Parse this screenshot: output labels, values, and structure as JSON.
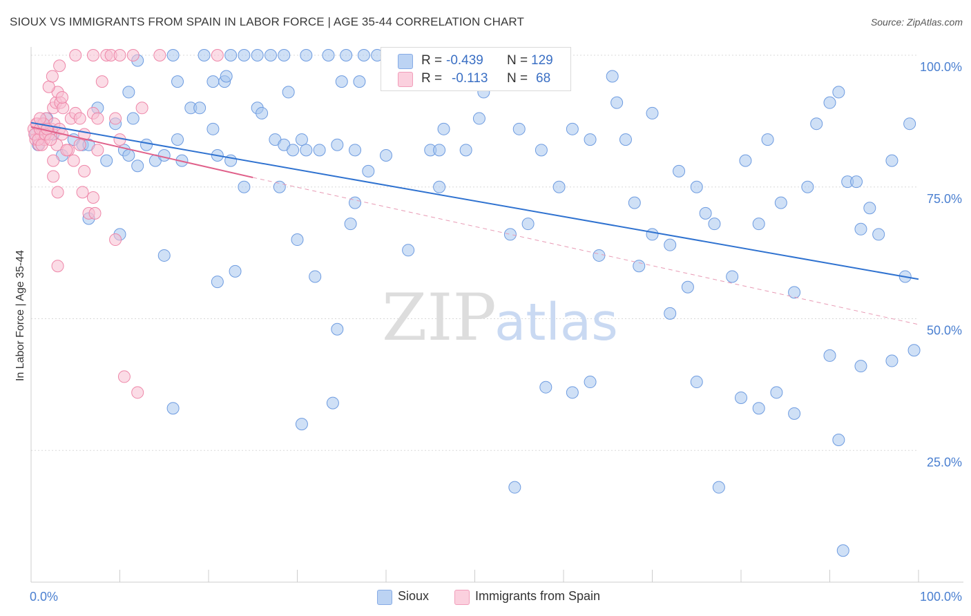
{
  "title": "SIOUX VS IMMIGRANTS FROM SPAIN IN LABOR FORCE | AGE 35-44 CORRELATION CHART",
  "source": "Source: ZipAtlas.com",
  "watermark": {
    "zip": "ZIP",
    "atlas": "atlas"
  },
  "legend": {
    "r_label": "R =",
    "n_label": "N =",
    "rows": [
      {
        "name": "Sioux",
        "r": "-0.439",
        "n": "129",
        "color": "#a8c6ee",
        "edge": "#6d9be0"
      },
      {
        "name": "Immigrants from Spain",
        "r": "-0.113",
        "n": "68",
        "color": "#f8bfd1",
        "edge": "#ee86a8"
      }
    ]
  },
  "chart_data": {
    "type": "scatter",
    "title": "SIOUX VS IMMIGRANTS FROM SPAIN IN LABOR FORCE | AGE 35-44 CORRELATION CHART",
    "xlabel": "",
    "ylabel": "In Labor Force | Age 35-44",
    "xlim": [
      0,
      100
    ],
    "ylim": [
      0,
      100
    ],
    "x_tick_labels": [
      "0.0%",
      "100.0%"
    ],
    "y_tick_labels": [
      "100.0%",
      "75.0%",
      "50.0%",
      "25.0%"
    ],
    "y_tick_values": [
      100,
      75,
      50,
      25
    ],
    "grid": true,
    "series": [
      {
        "name": "Sioux",
        "color": "#a8c6ee",
        "edge": "#6d9be0",
        "trend": {
          "x": [
            0,
            100
          ],
          "y": [
            87.2,
            57.5
          ],
          "color": "#2f72d0",
          "dashed": false
        },
        "points": [
          [
            0.5,
            85
          ],
          [
            0.8,
            83
          ],
          [
            1.2,
            87
          ],
          [
            1.8,
            88
          ],
          [
            2.5,
            85
          ],
          [
            3.5,
            81
          ],
          [
            4.8,
            84
          ],
          [
            5.8,
            83
          ],
          [
            6.5,
            83
          ],
          [
            7.5,
            90
          ],
          [
            8.5,
            80
          ],
          [
            9.5,
            87
          ],
          [
            10.5,
            82
          ],
          [
            11.0,
            81
          ],
          [
            12.0,
            79
          ],
          [
            11.5,
            88
          ],
          [
            13.0,
            83
          ],
          [
            14.0,
            80
          ],
          [
            15.0,
            81
          ],
          [
            16.5,
            84
          ],
          [
            17.0,
            80
          ],
          [
            18.0,
            90
          ],
          [
            19.0,
            90
          ],
          [
            20.5,
            86
          ],
          [
            21.0,
            81
          ],
          [
            22.5,
            80
          ],
          [
            24.0,
            75
          ],
          [
            25.5,
            90
          ],
          [
            26.0,
            89
          ],
          [
            27.5,
            84
          ],
          [
            28.5,
            83
          ],
          [
            29.5,
            82
          ],
          [
            30.5,
            84
          ],
          [
            31.0,
            82
          ],
          [
            29.0,
            93
          ],
          [
            32.5,
            82
          ],
          [
            34.5,
            83
          ],
          [
            36.5,
            82
          ],
          [
            11.0,
            93
          ],
          [
            16.5,
            95
          ],
          [
            20.5,
            95
          ],
          [
            21.8,
            95
          ],
          [
            22.0,
            96
          ],
          [
            12.0,
            99
          ],
          [
            16.0,
            100
          ],
          [
            19.5,
            100
          ],
          [
            22.5,
            100
          ],
          [
            24.0,
            100
          ],
          [
            25.5,
            100
          ],
          [
            27.0,
            100
          ],
          [
            28.5,
            100
          ],
          [
            31.0,
            100
          ],
          [
            33.5,
            100
          ],
          [
            35.5,
            100
          ],
          [
            37.5,
            100
          ],
          [
            39.0,
            100
          ],
          [
            40.5,
            100
          ],
          [
            42.5,
            100
          ],
          [
            35.0,
            95
          ],
          [
            37.0,
            95
          ],
          [
            42.5,
            96
          ],
          [
            44.5,
            95
          ],
          [
            47.5,
            100
          ],
          [
            6.5,
            69
          ],
          [
            10.0,
            66
          ],
          [
            15.0,
            62
          ],
          [
            28.0,
            75
          ],
          [
            30.0,
            65
          ],
          [
            36.0,
            68
          ],
          [
            42.5,
            63
          ],
          [
            21.0,
            57
          ],
          [
            23.0,
            59
          ],
          [
            34.5,
            48
          ],
          [
            30.5,
            30
          ],
          [
            34.0,
            34
          ],
          [
            16.0,
            33
          ],
          [
            32.0,
            58
          ],
          [
            36.5,
            72
          ],
          [
            38.0,
            78
          ],
          [
            40.0,
            81
          ],
          [
            45.0,
            82
          ],
          [
            46.0,
            82
          ],
          [
            46.5,
            86
          ],
          [
            46.0,
            75
          ],
          [
            49.0,
            82
          ],
          [
            50.5,
            88
          ],
          [
            51.0,
            93
          ],
          [
            54.0,
            66
          ],
          [
            55.0,
            86
          ],
          [
            56.0,
            68
          ],
          [
            57.5,
            82
          ],
          [
            59.5,
            75
          ],
          [
            61.0,
            86
          ],
          [
            63.0,
            84
          ],
          [
            64.0,
            62
          ],
          [
            65.5,
            96
          ],
          [
            66.0,
            91
          ],
          [
            67.0,
            84
          ],
          [
            68.0,
            72
          ],
          [
            68.5,
            60
          ],
          [
            70.0,
            66
          ],
          [
            70.0,
            89
          ],
          [
            72.0,
            64
          ],
          [
            73.0,
            78
          ],
          [
            75.0,
            75
          ],
          [
            76.0,
            70
          ],
          [
            77.0,
            68
          ],
          [
            79.0,
            58
          ],
          [
            80.5,
            80
          ],
          [
            82.0,
            68
          ],
          [
            83.0,
            84
          ],
          [
            84.5,
            72
          ],
          [
            86.0,
            55
          ],
          [
            87.5,
            75
          ],
          [
            88.5,
            87
          ],
          [
            90.0,
            91
          ],
          [
            91.0,
            93
          ],
          [
            92.0,
            76
          ],
          [
            93.0,
            76
          ],
          [
            93.5,
            67
          ],
          [
            94.5,
            71
          ],
          [
            95.5,
            66
          ],
          [
            97.0,
            80
          ],
          [
            98.5,
            58
          ],
          [
            99.0,
            87
          ],
          [
            63.0,
            38
          ],
          [
            72.0,
            51
          ],
          [
            75.0,
            38
          ],
          [
            74.0,
            56
          ],
          [
            61.0,
            36
          ],
          [
            58.0,
            37
          ],
          [
            54.5,
            18
          ],
          [
            77.5,
            18
          ],
          [
            80.0,
            35
          ],
          [
            82.0,
            33
          ],
          [
            84.0,
            36
          ],
          [
            86.0,
            32
          ],
          [
            90.0,
            43
          ],
          [
            91.0,
            27
          ],
          [
            93.5,
            41
          ],
          [
            97.0,
            42
          ],
          [
            99.5,
            44
          ],
          [
            91.5,
            6
          ]
        ]
      },
      {
        "name": "Immigrants from Spain",
        "color": "#f8bfd1",
        "edge": "#ee86a8",
        "trend": {
          "x": [
            0,
            25
          ],
          "y": [
            86.4,
            76.8
          ],
          "color": "#e0608a",
          "dashed": false
        },
        "trend_ext": {
          "x": [
            25,
            100
          ],
          "y": [
            76.8,
            48.9
          ],
          "color": "#e89ab4",
          "dashed": true
        },
        "points": [
          [
            0.3,
            86
          ],
          [
            0.5,
            84
          ],
          [
            0.7,
            87
          ],
          [
            0.9,
            83
          ],
          [
            1.1,
            85
          ],
          [
            1.3,
            86
          ],
          [
            1.5,
            84
          ],
          [
            1.7,
            88
          ],
          [
            2.0,
            85
          ],
          [
            2.3,
            86
          ],
          [
            2.6,
            87
          ],
          [
            2.9,
            83
          ],
          [
            3.2,
            86
          ],
          [
            3.5,
            85
          ],
          [
            0.4,
            85
          ],
          [
            0.6,
            87
          ],
          [
            0.8,
            84
          ],
          [
            1.0,
            86
          ],
          [
            1.2,
            83
          ],
          [
            1.4,
            87
          ],
          [
            1.6,
            85
          ],
          [
            1.8,
            86
          ],
          [
            2.2,
            84
          ],
          [
            2.5,
            90
          ],
          [
            2.8,
            91
          ],
          [
            3.0,
            93
          ],
          [
            3.3,
            91
          ],
          [
            3.6,
            90
          ],
          [
            2.0,
            94
          ],
          [
            2.4,
            96
          ],
          [
            4.5,
            88
          ],
          [
            5.0,
            89
          ],
          [
            5.5,
            88
          ],
          [
            6.0,
            85
          ],
          [
            7.0,
            89
          ],
          [
            7.5,
            88
          ],
          [
            9.5,
            88
          ],
          [
            10.0,
            84
          ],
          [
            4.2,
            82
          ],
          [
            4.8,
            80
          ],
          [
            5.5,
            83
          ],
          [
            2.5,
            77
          ],
          [
            3.0,
            74
          ],
          [
            5.8,
            74
          ],
          [
            7.0,
            73
          ],
          [
            6.5,
            70
          ],
          [
            7.2,
            70
          ],
          [
            9.5,
            65
          ],
          [
            3.0,
            60
          ],
          [
            2.5,
            80
          ],
          [
            3.2,
            98
          ],
          [
            5.0,
            100
          ],
          [
            7.0,
            100
          ],
          [
            8.5,
            100
          ],
          [
            9.0,
            100
          ],
          [
            10.0,
            100
          ],
          [
            11.5,
            100
          ],
          [
            14.5,
            100
          ],
          [
            21.0,
            100
          ],
          [
            3.5,
            92
          ],
          [
            4.0,
            82
          ],
          [
            6.0,
            78
          ],
          [
            7.5,
            82
          ],
          [
            8.0,
            95
          ],
          [
            12.5,
            90
          ],
          [
            10.5,
            39
          ],
          [
            12.0,
            36
          ],
          [
            1.0,
            88
          ]
        ]
      }
    ]
  }
}
